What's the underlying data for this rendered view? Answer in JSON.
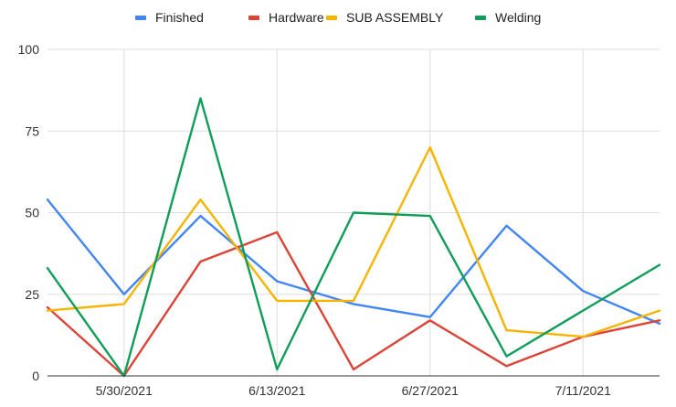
{
  "chart_data": {
    "type": "line",
    "title": "",
    "xlabel": "",
    "ylabel": "",
    "ylim": [
      0,
      100
    ],
    "yticks": [
      0,
      25,
      50,
      75,
      100
    ],
    "x": [
      "5/23/2021",
      "5/30/2021",
      "6/6/2021",
      "6/13/2021",
      "6/20/2021",
      "6/27/2021",
      "7/4/2021",
      "7/11/2021",
      "7/18/2021"
    ],
    "xtick_labels": [
      "5/30/2021",
      "6/13/2021",
      "6/27/2021",
      "7/11/2021"
    ],
    "grid": true,
    "legend_position": "top",
    "series": [
      {
        "name": "Finished",
        "color": "#4285F4",
        "values": [
          54,
          25,
          49,
          29,
          22,
          18,
          46,
          26,
          16
        ]
      },
      {
        "name": "Hardware",
        "color": "#DB4437",
        "values": [
          21,
          0,
          35,
          44,
          2,
          17,
          3,
          12,
          17
        ]
      },
      {
        "name": "SUB ASSEMBLY",
        "color": "#F4B400",
        "values": [
          20,
          22,
          54,
          23,
          23,
          70,
          14,
          12,
          20
        ]
      },
      {
        "name": "Welding",
        "color": "#0F9D58",
        "values": [
          33,
          0,
          85,
          2,
          50,
          49,
          6,
          20,
          34
        ]
      }
    ]
  }
}
